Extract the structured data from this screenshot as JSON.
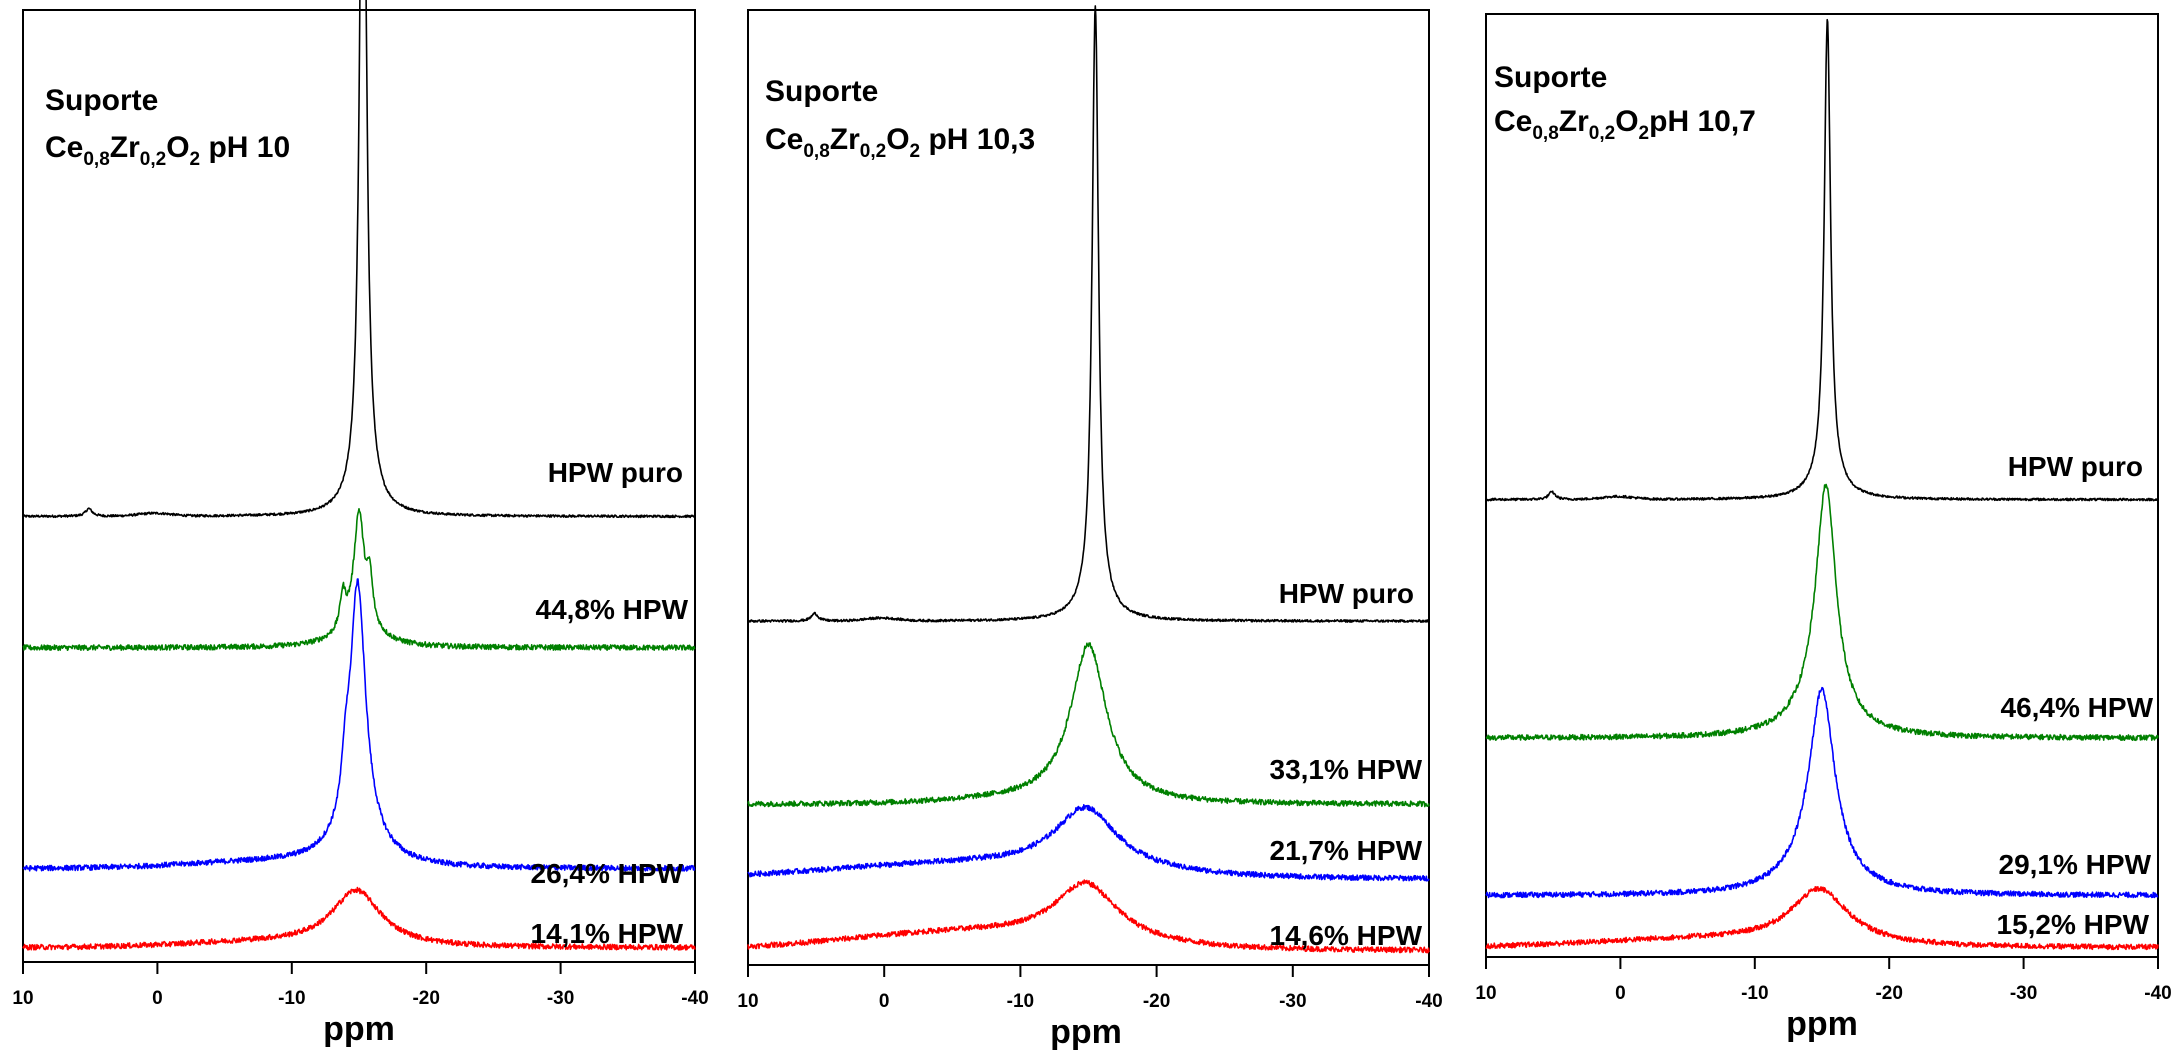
{
  "chart_data": [
    {
      "type": "line",
      "title_line1": "Suporte",
      "title_formula": [
        {
          "t": "Ce",
          "sub": false
        },
        {
          "t": "0,8",
          "sub": true
        },
        {
          "t": "Zr",
          "sub": false
        },
        {
          "t": "0,2",
          "sub": true
        },
        {
          "t": "O",
          "sub": false
        },
        {
          "t": "2",
          "sub": true
        },
        {
          "t": " pH 10",
          "sub": false
        }
      ],
      "xlabel": "ppm",
      "xlim": [
        10,
        -40
      ],
      "xticks": [
        "10",
        "0",
        "-10",
        "-20",
        "-30",
        "-40"
      ],
      "grid": false,
      "series": [
        {
          "name": "HPW puro",
          "color": "#000000",
          "baseline": 0.468,
          "peaks": [
            {
              "x": -15.3,
              "amp": 0.885,
              "w": 0.28,
              "t": "l"
            },
            {
              "x": -15.3,
              "amp": 0.02,
              "w": 1.3,
              "t": "l"
            },
            {
              "x": 5.1,
              "amp": 0.008,
              "w": 0.3,
              "t": "l"
            },
            {
              "x": 0.2,
              "amp": 0.003,
              "w": 1.2,
              "t": "g"
            }
          ]
        },
        {
          "name": "44,8% HPW",
          "color": "#008000",
          "baseline": 0.33,
          "peaks": [
            {
              "x": -15.0,
              "amp": 0.115,
              "w": 0.45,
              "t": "l"
            },
            {
              "x": -13.8,
              "amp": 0.035,
              "w": 0.25,
              "t": "l"
            },
            {
              "x": -15.8,
              "amp": 0.045,
              "w": 0.25,
              "t": "l"
            },
            {
              "x": -15.0,
              "amp": 0.025,
              "w": 1.6,
              "t": "l"
            }
          ]
        },
        {
          "name": "26,4% HPW",
          "color": "#0000ff",
          "baseline": 0.098,
          "peaks": [
            {
              "x": -14.9,
              "amp": 0.265,
              "w": 0.7,
              "t": "l"
            },
            {
              "x": -14.0,
              "amp": 0.04,
              "w": 0.3,
              "t": "l"
            },
            {
              "x": -15.0,
              "amp": 0.03,
              "w": 2.0,
              "t": "l"
            },
            {
              "x": -8.0,
              "amp": 0.006,
              "w": 6.0,
              "t": "g"
            }
          ]
        },
        {
          "name": "14,1% HPW",
          "color": "#ff0000",
          "baseline": 0.015,
          "peaks": [
            {
              "x": -14.8,
              "amp": 0.058,
              "w": 2.2,
              "t": "l"
            },
            {
              "x": -8.0,
              "amp": 0.005,
              "w": 6.0,
              "t": "g"
            }
          ]
        }
      ],
      "annotations": [
        "HPW puro",
        "44,8% HPW",
        "26,4% HPW",
        "14,1% HPW"
      ]
    },
    {
      "type": "line",
      "title_line1": "Suporte",
      "title_formula": [
        {
          "t": "Ce",
          "sub": false
        },
        {
          "t": "0,8",
          "sub": true
        },
        {
          "t": "Zr",
          "sub": false
        },
        {
          "t": "0,2",
          "sub": true
        },
        {
          "t": "O",
          "sub": false
        },
        {
          "t": "2",
          "sub": true
        },
        {
          "t": " pH 10,3",
          "sub": false
        }
      ],
      "xlabel": "ppm",
      "xlim": [
        10,
        -40
      ],
      "xticks": [
        "10",
        "0",
        "-10",
        "-20",
        "-30",
        "-40"
      ],
      "grid": false,
      "series": [
        {
          "name": "HPW puro",
          "color": "#000000",
          "baseline": 0.36,
          "peaks": [
            {
              "x": -15.5,
              "amp": 0.625,
              "w": 0.28,
              "t": "l"
            },
            {
              "x": -15.5,
              "amp": 0.02,
              "w": 1.3,
              "t": "l"
            },
            {
              "x": 5.1,
              "amp": 0.008,
              "w": 0.3,
              "t": "l"
            },
            {
              "x": 0.2,
              "amp": 0.003,
              "w": 1.2,
              "t": "g"
            }
          ]
        },
        {
          "name": "33,1% HPW",
          "color": "#008000",
          "baseline": 0.168,
          "peaks": [
            {
              "x": -15.0,
              "amp": 0.165,
              "w": 1.6,
              "t": "l"
            },
            {
              "x": -10.0,
              "amp": 0.004,
              "w": 5.0,
              "t": "g"
            }
          ]
        },
        {
          "name": "21,7% HPW",
          "color": "#0000ff",
          "baseline": 0.09,
          "peaks": [
            {
              "x": -14.8,
              "amp": 0.065,
              "w": 2.8,
              "t": "l"
            },
            {
              "x": -6.0,
              "amp": 0.015,
              "w": 10.0,
              "t": "g"
            }
          ]
        },
        {
          "name": "14,6% HPW",
          "color": "#ff0000",
          "baseline": 0.015,
          "peaks": [
            {
              "x": -14.8,
              "amp": 0.06,
              "w": 2.8,
              "t": "l"
            },
            {
              "x": -6.0,
              "amp": 0.018,
              "w": 9.0,
              "t": "g"
            }
          ]
        }
      ],
      "annotations": [
        "HPW puro",
        "33,1% HPW",
        "21,7% HPW",
        "14,6% HPW"
      ]
    },
    {
      "type": "line",
      "title_line1": "Suporte",
      "title_formula": [
        {
          "t": "Ce",
          "sub": false
        },
        {
          "t": "0,8",
          "sub": true
        },
        {
          "t": "Zr",
          "sub": false
        },
        {
          "t": "0,2",
          "sub": true
        },
        {
          "t": "O",
          "sub": false
        },
        {
          "t": "2",
          "sub": true
        },
        {
          "t": "pH 10,7",
          "sub": false
        }
      ],
      "xlabel": "ppm",
      "xlim": [
        10,
        -40
      ],
      "xticks": [
        "10",
        "0",
        "-10",
        "-20",
        "-30",
        "-40"
      ],
      "grid": false,
      "series": [
        {
          "name": "HPW puro",
          "color": "#000000",
          "baseline": 0.485,
          "peaks": [
            {
              "x": -15.4,
              "amp": 0.49,
              "w": 0.28,
              "t": "l"
            },
            {
              "x": -15.4,
              "amp": 0.02,
              "w": 1.3,
              "t": "l"
            },
            {
              "x": 5.1,
              "amp": 0.008,
              "w": 0.3,
              "t": "l"
            },
            {
              "x": 0.2,
              "amp": 0.003,
              "w": 1.2,
              "t": "g"
            }
          ]
        },
        {
          "name": "46,4% HPW",
          "color": "#008000",
          "baseline": 0.232,
          "peaks": [
            {
              "x": -15.3,
              "amp": 0.24,
              "w": 0.9,
              "t": "l"
            },
            {
              "x": -14.8,
              "amp": 0.03,
              "w": 2.2,
              "t": "l"
            }
          ]
        },
        {
          "name": "29,1% HPW",
          "color": "#0000ff",
          "baseline": 0.065,
          "peaks": [
            {
              "x": -15.0,
              "amp": 0.185,
              "w": 1.1,
              "t": "l"
            },
            {
              "x": -14.7,
              "amp": 0.035,
              "w": 2.5,
              "t": "l"
            }
          ]
        },
        {
          "name": "15,2% HPW",
          "color": "#ff0000",
          "baseline": 0.01,
          "peaks": [
            {
              "x": -14.8,
              "amp": 0.058,
              "w": 2.6,
              "t": "l"
            },
            {
              "x": -6.0,
              "amp": 0.008,
              "w": 8.0,
              "t": "g"
            }
          ]
        }
      ],
      "annotations": [
        "HPW puro",
        "46,4% HPW",
        "29,1% HPW",
        "15,2% HPW"
      ]
    }
  ]
}
